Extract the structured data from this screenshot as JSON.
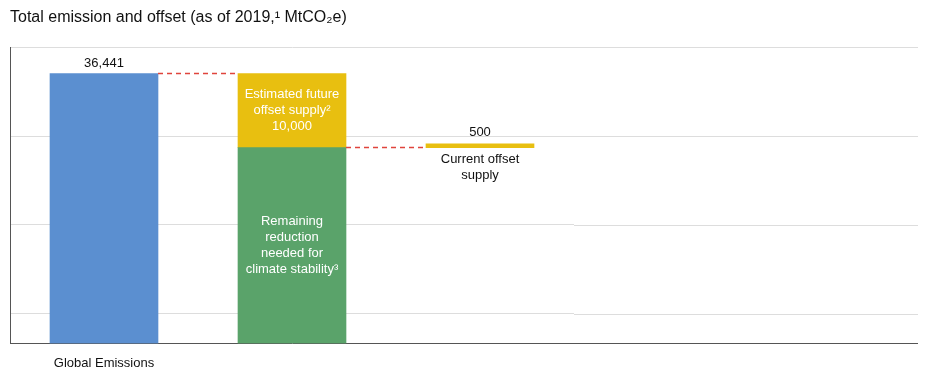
{
  "chart_data": {
    "type": "bar",
    "title": "Total emission and offset (as of 2019,¹ MtCO₂e)",
    "categories": [
      "Global Emissions",
      null,
      null
    ],
    "series": [
      {
        "color": "#5b8fd0",
        "values": [
          36441,
          null,
          null
        ],
        "value_labels": [
          "36,441",
          null,
          null
        ]
      },
      {
        "name": "Remaining reduction needed for climate stability³",
        "color": "#5aa36a",
        "values": [
          null,
          26441,
          null
        ]
      },
      {
        "name": "Estimated future offset supply²",
        "color": "#e8bf10",
        "values": [
          null,
          10000,
          null
        ],
        "value_labels": [
          null,
          "10,000",
          null
        ]
      },
      {
        "name": "Current offset supply",
        "color": "#e8bf10",
        "values": [
          null,
          null,
          500
        ],
        "value_labels": [
          null,
          null,
          "500"
        ]
      }
    ],
    "stacked": true,
    "data_labels": true,
    "tick_labels": "x",
    "grid": true,
    "ylim": [
      0,
      40000
    ],
    "yticks": [
      4000,
      16000,
      28000,
      40000
    ]
  }
}
